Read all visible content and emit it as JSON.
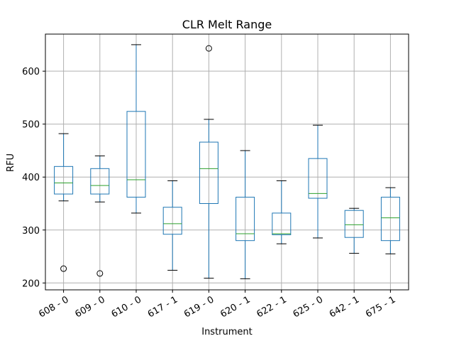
{
  "chart_data": {
    "type": "box",
    "title": "CLR Melt Range",
    "xlabel": "Instrument",
    "ylabel": "RFU",
    "ylim": [
      187,
      670
    ],
    "yticks": [
      200,
      300,
      400,
      500,
      600
    ],
    "grid": true,
    "colors": {
      "box": "#1f77b4",
      "median": "#2ca02c",
      "whisker": "#1f77b4",
      "cap": "#000000",
      "outlier": "#000000",
      "grid": "#b0b0b0"
    },
    "categories": [
      "608 - 0",
      "609 - 0",
      "610 - 0",
      "617 - 1",
      "619 - 0",
      "620 - 1",
      "622 - 1",
      "625 - 0",
      "642 - 1",
      "675 - 1"
    ],
    "boxes": [
      {
        "whislo": 355,
        "q1": 368,
        "med": 389,
        "q3": 420,
        "whishi": 482,
        "fliers": [
          227
        ]
      },
      {
        "whislo": 353,
        "q1": 368,
        "med": 384,
        "q3": 416,
        "whishi": 440,
        "fliers": [
          218
        ]
      },
      {
        "whislo": 332,
        "q1": 362,
        "med": 395,
        "q3": 524,
        "whishi": 650,
        "fliers": []
      },
      {
        "whislo": 224,
        "q1": 292,
        "med": 312,
        "q3": 343,
        "whishi": 393,
        "fliers": []
      },
      {
        "whislo": 209,
        "q1": 350,
        "med": 416,
        "q3": 466,
        "whishi": 509,
        "fliers": [
          643
        ]
      },
      {
        "whislo": 208,
        "q1": 280,
        "med": 293,
        "q3": 362,
        "whishi": 450,
        "fliers": []
      },
      {
        "whislo": 274,
        "q1": 291,
        "med": 293,
        "q3": 332,
        "whishi": 393,
        "fliers": []
      },
      {
        "whislo": 285,
        "q1": 360,
        "med": 369,
        "q3": 435,
        "whishi": 498,
        "fliers": []
      },
      {
        "whislo": 256,
        "q1": 286,
        "med": 310,
        "q3": 337,
        "whishi": 341,
        "fliers": []
      },
      {
        "whislo": 255,
        "q1": 280,
        "med": 323,
        "q3": 362,
        "whishi": 380,
        "fliers": []
      }
    ]
  }
}
